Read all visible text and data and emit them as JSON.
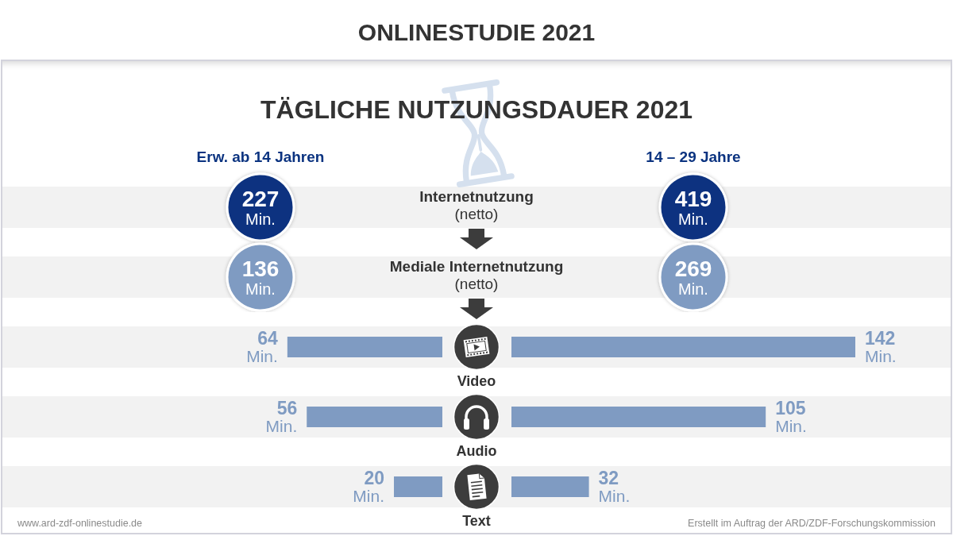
{
  "chart_data": [
    {
      "type": "other",
      "title": "ONLINESTUDIE 2021",
      "subtitle": "TÄGLICHE NUTZUNGSDAUER 2021",
      "categories": [
        "Internetnutzung (netto)",
        "Mediale Internetnutzung (netto)"
      ],
      "series": [
        {
          "name": "Erw. ab 14 Jahren",
          "colors": [
            "#0b3380",
            "#7f9bc2"
          ],
          "values": [
            227,
            136
          ],
          "value_labels": [
            "227 Min.",
            "136 Min."
          ]
        },
        {
          "name": "14 – 29 Jahre",
          "colors": [
            "#0b3380",
            "#7f9bc2"
          ],
          "values": [
            419,
            269
          ],
          "value_labels": [
            "419 Min.",
            "269 Min."
          ]
        }
      ]
    },
    {
      "type": "bar",
      "orientation": "horizontal",
      "categories": [
        "Video",
        "Audio",
        "Text"
      ],
      "series": [
        {
          "color": "#7f9bc2",
          "values": [
            64,
            56,
            20
          ],
          "value_labels": [
            "64 Min.",
            "56 Min.",
            "20 Min."
          ]
        }
      ],
      "tick_labels": "y",
      "annotations": [
        "www.ard-zdf-onlinestudie.de"
      ]
    },
    {
      "type": "bar",
      "orientation": "horizontal",
      "categories": [
        null,
        null,
        null
      ],
      "series": [
        {
          "color": "#7f9bc2",
          "values": [
            142,
            105,
            32
          ],
          "value_labels": [
            "142 Min.",
            "105 Min.",
            "32 Min."
          ]
        }
      ],
      "tick_labels": "y",
      "annotations": [
        "Erstellt im Auftrag der ARD/ZDF-Forschungskommission"
      ]
    }
  ]
}
